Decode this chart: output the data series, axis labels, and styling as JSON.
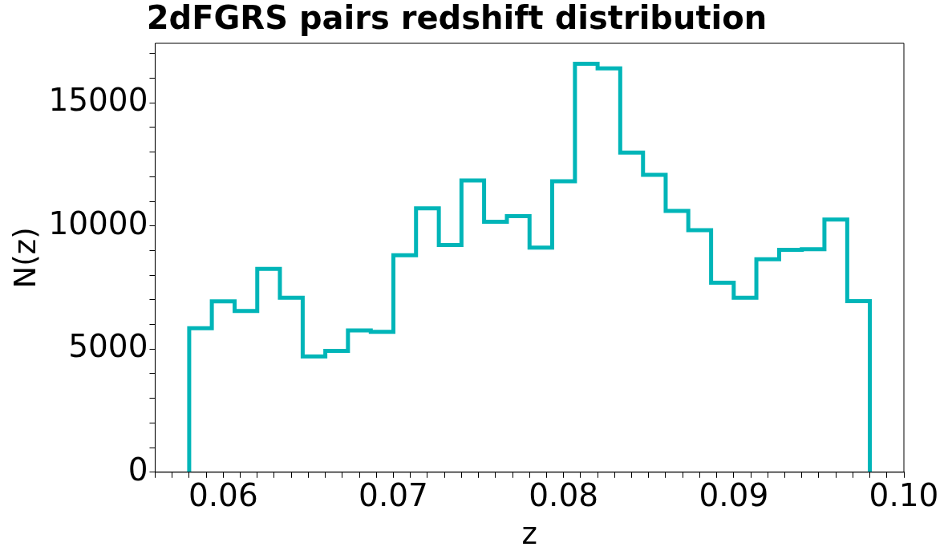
{
  "chart_data": {
    "type": "histogram",
    "title": "2dFGRS pairs redshift distribution",
    "xlabel": "z",
    "ylabel": "N(z)",
    "color": "#00b5b8",
    "bins": [
      0.058,
      0.05933,
      0.06067,
      0.062,
      0.06333,
      0.06467,
      0.066,
      0.06733,
      0.06867,
      0.07,
      0.07133,
      0.07267,
      0.074,
      0.07533,
      0.07667,
      0.078,
      0.07933,
      0.08067,
      0.082,
      0.08333,
      0.08467,
      0.086,
      0.08733,
      0.08867,
      0.09,
      0.09133,
      0.09267,
      0.094,
      0.09533,
      0.09667,
      0.098
    ],
    "values": [
      5850,
      6940,
      6550,
      8260,
      7090,
      4700,
      4930,
      5760,
      5700,
      8810,
      10720,
      9230,
      11850,
      10170,
      10400,
      9120,
      11820,
      16590,
      16400,
      12980,
      12080,
      10610,
      9830,
      7700,
      7090,
      8650,
      9030,
      9060,
      10260,
      6950
    ],
    "xlim": [
      0.056,
      0.1
    ],
    "ylim": [
      0,
      17420
    ],
    "xticks": [
      {
        "value": 0.056,
        "label": null
      },
      {
        "value": 0.057,
        "label": null
      },
      {
        "value": 0.058,
        "label": null
      },
      {
        "value": 0.059,
        "label": null
      },
      {
        "value": 0.06,
        "label": "0.06"
      },
      {
        "value": 0.061,
        "label": null
      },
      {
        "value": 0.062,
        "label": null
      },
      {
        "value": 0.063,
        "label": null
      },
      {
        "value": 0.064,
        "label": null
      },
      {
        "value": 0.065,
        "label": null
      },
      {
        "value": 0.066,
        "label": null
      },
      {
        "value": 0.067,
        "label": null
      },
      {
        "value": 0.068,
        "label": null
      },
      {
        "value": 0.069,
        "label": null
      },
      {
        "value": 0.07,
        "label": "0.07"
      },
      {
        "value": 0.071,
        "label": null
      },
      {
        "value": 0.072,
        "label": null
      },
      {
        "value": 0.073,
        "label": null
      },
      {
        "value": 0.074,
        "label": null
      },
      {
        "value": 0.075,
        "label": null
      },
      {
        "value": 0.076,
        "label": null
      },
      {
        "value": 0.077,
        "label": null
      },
      {
        "value": 0.078,
        "label": null
      },
      {
        "value": 0.079,
        "label": null
      },
      {
        "value": 0.08,
        "label": "0.08"
      },
      {
        "value": 0.081,
        "label": null
      },
      {
        "value": 0.082,
        "label": null
      },
      {
        "value": 0.083,
        "label": null
      },
      {
        "value": 0.084,
        "label": null
      },
      {
        "value": 0.085,
        "label": null
      },
      {
        "value": 0.086,
        "label": null
      },
      {
        "value": 0.087,
        "label": null
      },
      {
        "value": 0.088,
        "label": null
      },
      {
        "value": 0.089,
        "label": null
      },
      {
        "value": 0.09,
        "label": "0.09"
      },
      {
        "value": 0.091,
        "label": null
      },
      {
        "value": 0.092,
        "label": null
      },
      {
        "value": 0.093,
        "label": null
      },
      {
        "value": 0.094,
        "label": null
      },
      {
        "value": 0.095,
        "label": null
      },
      {
        "value": 0.096,
        "label": null
      },
      {
        "value": 0.097,
        "label": null
      },
      {
        "value": 0.098,
        "label": null
      },
      {
        "value": 0.099,
        "label": null
      },
      {
        "value": 0.1,
        "label": "0.10"
      }
    ],
    "yticks": [
      0,
      {
        "value": 1000,
        "label": null
      },
      {
        "value": 2000,
        "label": null
      },
      {
        "value": 3000,
        "label": null
      },
      {
        "value": 4000,
        "label": null
      },
      5000,
      {
        "value": 6000,
        "label": null
      },
      {
        "value": 7000,
        "label": null
      },
      {
        "value": 8000,
        "label": null
      },
      {
        "value": 9000,
        "label": null
      },
      10000,
      {
        "value": 11000,
        "label": null
      },
      {
        "value": 12000,
        "label": null
      },
      {
        "value": 13000,
        "label": null
      },
      {
        "value": 14000,
        "label": null
      },
      15000,
      {
        "value": 16000,
        "label": null
      },
      {
        "value": 17000,
        "label": null
      }
    ],
    "grid": false,
    "legend": false
  }
}
